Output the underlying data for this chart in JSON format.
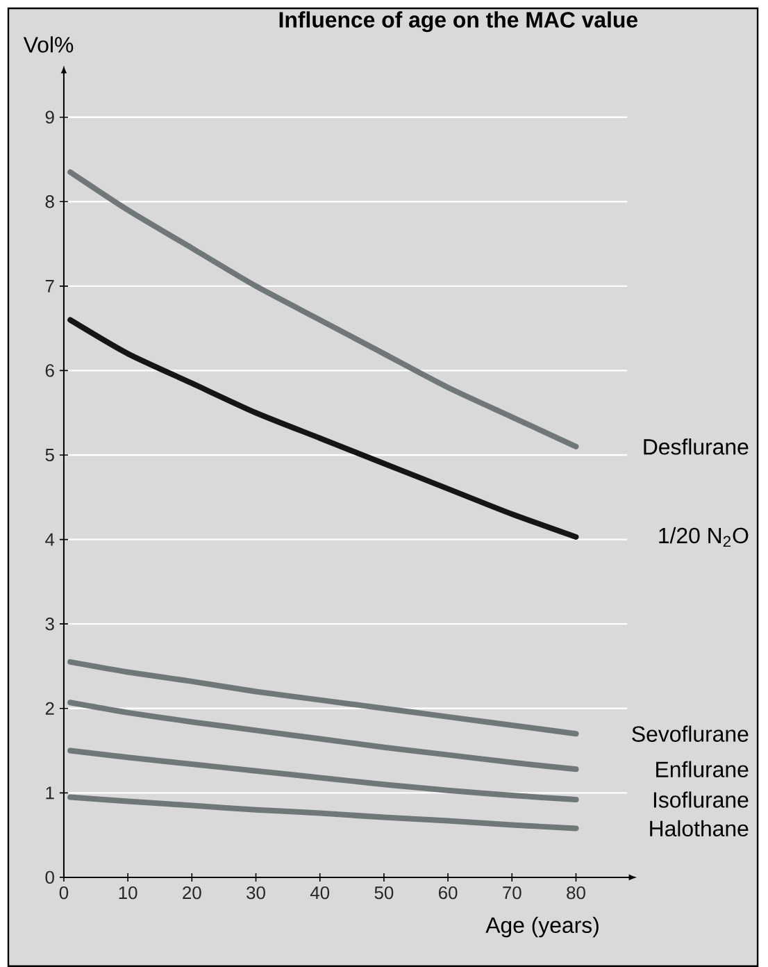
{
  "chart_data": {
    "type": "line",
    "title": "Influence of age on the MAC value",
    "xlabel": "Age (years)",
    "ylabel": "Vol%",
    "x": [
      1,
      10,
      20,
      30,
      40,
      50,
      60,
      70,
      80
    ],
    "series": [
      {
        "name": "Desflurane",
        "color": "#6f7778",
        "values": [
          8.35,
          7.9,
          7.45,
          7.0,
          6.6,
          6.2,
          5.8,
          5.45,
          5.1
        ]
      },
      {
        "name": "1/20 N$_{2}$O",
        "color": "#151515",
        "values": [
          6.6,
          6.2,
          5.85,
          5.5,
          5.2,
          4.9,
          4.6,
          4.3,
          4.03
        ]
      },
      {
        "name": "Sevoflurane",
        "color": "#6f7778",
        "values": [
          2.55,
          2.43,
          2.32,
          2.2,
          2.1,
          2.0,
          1.9,
          1.8,
          1.7
        ]
      },
      {
        "name": "Enflurane",
        "color": "#6f7778",
        "values": [
          2.07,
          1.95,
          1.84,
          1.74,
          1.64,
          1.54,
          1.45,
          1.36,
          1.28
        ]
      },
      {
        "name": "Isoflurane",
        "color": "#6f7778",
        "values": [
          1.5,
          1.42,
          1.34,
          1.26,
          1.18,
          1.1,
          1.03,
          0.97,
          0.92
        ]
      },
      {
        "name": "Halothane",
        "color": "#6f7778",
        "values": [
          0.95,
          0.9,
          0.85,
          0.8,
          0.76,
          0.71,
          0.67,
          0.62,
          0.58
        ]
      }
    ],
    "xlim": [
      0,
      88
    ],
    "ylim": [
      0,
      9.5
    ],
    "xticks": [
      0,
      10,
      20,
      30,
      40,
      50,
      60,
      70,
      80
    ],
    "yticks": [
      0,
      1,
      2,
      3,
      4,
      5,
      6,
      7,
      8,
      9
    ],
    "grid": "y",
    "legend": false,
    "marker": "none",
    "line_style": "solid"
  }
}
